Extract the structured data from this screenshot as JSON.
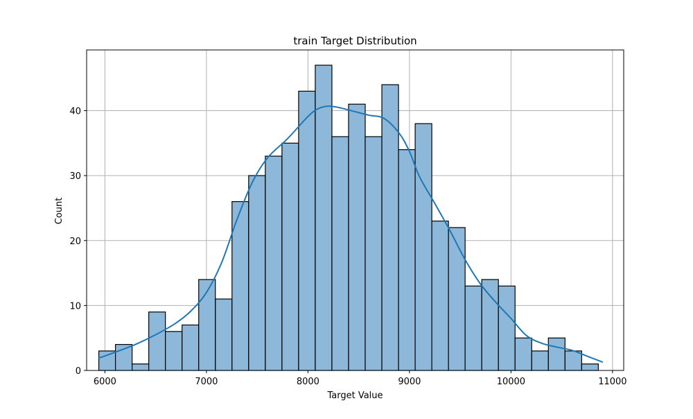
{
  "chart_data": {
    "type": "bar",
    "title": "train Target Distribution",
    "xlabel": "Target Value",
    "ylabel": "Count",
    "xlim": [
      5820,
      11110
    ],
    "ylim": [
      0,
      49.35
    ],
    "xticks": [
      6000,
      7000,
      8000,
      9000,
      10000,
      11000
    ],
    "yticks": [
      0,
      10,
      20,
      30,
      40
    ],
    "grid": true,
    "bins": {
      "start": 5940,
      "width": 164,
      "counts": [
        3,
        4,
        1,
        9,
        6,
        7,
        14,
        11,
        26,
        30,
        33,
        35,
        43,
        47,
        36,
        41,
        36,
        44,
        34,
        38,
        23,
        22,
        13,
        14,
        13,
        5,
        3,
        5,
        3,
        1
      ]
    },
    "kde": {
      "x": [
        5940,
        6100,
        6300,
        6500,
        6700,
        6850,
        7000,
        7150,
        7300,
        7450,
        7600,
        7800,
        8000,
        8100,
        8200,
        8300,
        8450,
        8600,
        8750,
        8900,
        9000,
        9100,
        9250,
        9400,
        9550,
        9700,
        9850,
        10000,
        10150,
        10300,
        10450,
        10600,
        10750,
        10900
      ],
      "y": [
        1.9,
        2.8,
        4.0,
        5.5,
        7.3,
        9.2,
        12.0,
        16.6,
        23.2,
        28.9,
        32.7,
        35.7,
        39.1,
        40.3,
        40.7,
        40.5,
        39.9,
        39.3,
        38.8,
        36.5,
        33.7,
        29.8,
        25.7,
        21.5,
        17.0,
        13.3,
        10.5,
        8.0,
        5.4,
        4.2,
        3.6,
        3.1,
        2.2,
        1.3
      ]
    },
    "colors": {
      "bar_fill": "#8db8d9",
      "bar_edge": "#000000",
      "kde_line": "#1f77b4",
      "grid": "#b0b0b0"
    }
  }
}
